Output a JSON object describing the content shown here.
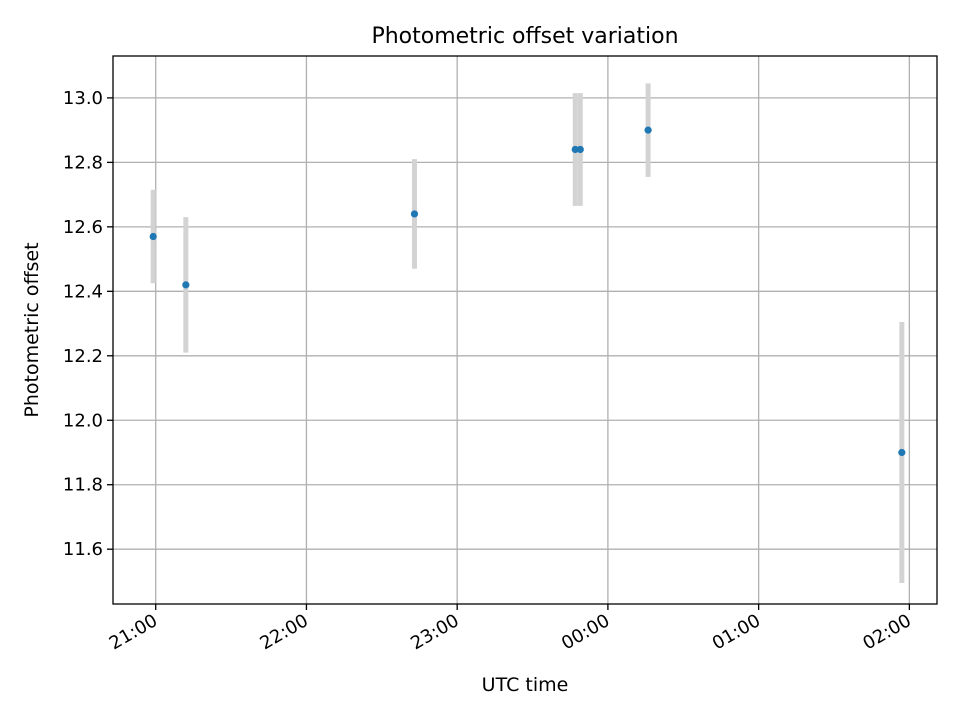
{
  "chart_data": {
    "type": "scatter",
    "title": "Photometric offset variation",
    "xlabel": "UTC time",
    "ylabel": "Photometric offset",
    "grid": true,
    "legend": "none",
    "colors": {
      "points": "#1f77b4",
      "errorbars": "#d3d3d3",
      "grid": "#b0b0b0"
    },
    "xlim": [
      "20:43",
      "02:11"
    ],
    "ylim": [
      11.43,
      13.13
    ],
    "x_ticks": [
      "21:00",
      "22:00",
      "23:00",
      "00:00",
      "01:00",
      "02:00"
    ],
    "y_ticks": [
      "11.6",
      "11.8",
      "12.0",
      "12.2",
      "12.4",
      "12.6",
      "12.8",
      "13.0"
    ],
    "points": [
      {
        "x": "20:59",
        "y": 12.57,
        "err": 0.145
      },
      {
        "x": "21:12",
        "y": 12.42,
        "err": 0.21
      },
      {
        "x": "22:43",
        "y": 12.64,
        "err": 0.17
      },
      {
        "x": "23:47",
        "y": 12.84,
        "err": 0.175
      },
      {
        "x": "23:49",
        "y": 12.84,
        "err": 0.175
      },
      {
        "x": "00:16",
        "y": 12.9,
        "err": 0.145
      },
      {
        "x": "01:57",
        "y": 11.9,
        "err": 0.405
      }
    ]
  }
}
